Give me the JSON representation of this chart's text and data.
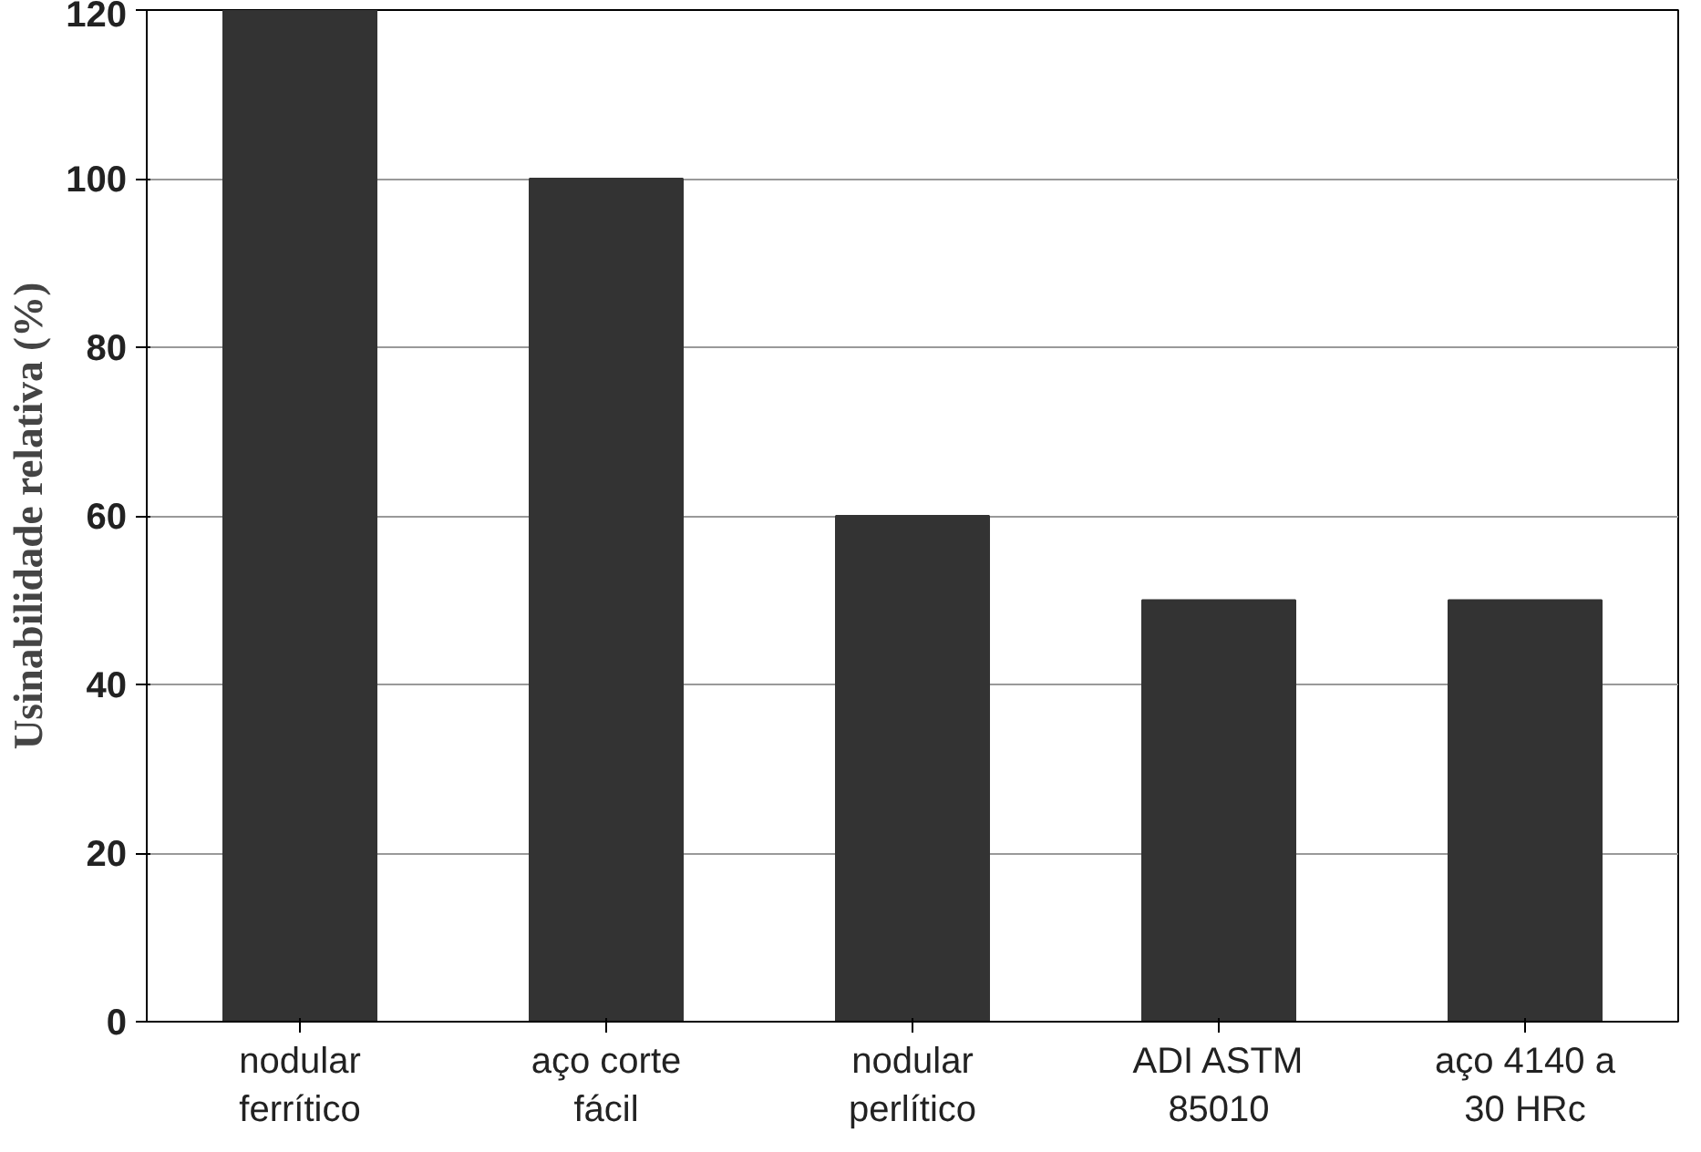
{
  "chart_data": {
    "type": "bar",
    "ylabel": "Usinabilidade relativa (%)",
    "categories": [
      "nodular\nferrítico",
      "aço corte\nfácil",
      "nodular\nperlítico",
      "ADI ASTM\n85010",
      "aço 4140 a\n30 HRc"
    ],
    "values": [
      120,
      100,
      60,
      50,
      50
    ],
    "color": "#333333",
    "ylim": [
      0,
      120
    ],
    "yticks": [
      0,
      20,
      40,
      60,
      80,
      100,
      120
    ],
    "grid": "y"
  }
}
